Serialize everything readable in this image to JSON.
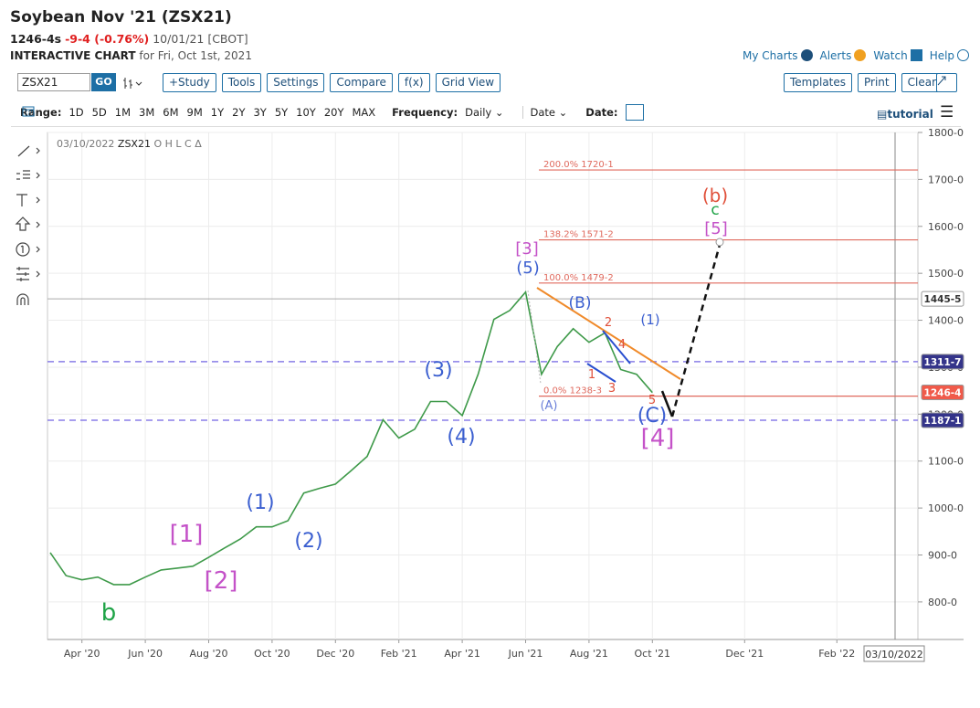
{
  "header": {
    "title": "Soybean Nov '21 (ZSX21)",
    "last": "1246-4s",
    "change": "-9-4 (-0.76%)",
    "date_exchange": "10/01/21 [CBOT]",
    "chart_label": "INTERACTIVE CHART",
    "chart_for": "for Fri, Oct 1st, 2021",
    "links": [
      "My Charts",
      "Alerts",
      "Watch",
      "Help"
    ]
  },
  "toolbar": {
    "symbol": "ZSX21",
    "go": "GO",
    "buttons_left": [
      "+Study",
      "Tools",
      "Settings",
      "Compare",
      "f(x)",
      "Grid View"
    ],
    "buttons_right": [
      "Templates",
      "Print",
      "Clear"
    ]
  },
  "range_bar": {
    "range_label": "Range:",
    "ranges": [
      "1D",
      "5D",
      "1M",
      "3M",
      "6M",
      "9M",
      "1Y",
      "2Y",
      "3Y",
      "5Y",
      "10Y",
      "20Y",
      "MAX"
    ],
    "frequency_label": "Frequency:",
    "frequency": "Daily",
    "date_mode": "Date",
    "date_label": "Date:",
    "tutorial": "tutorial"
  },
  "chart_data": {
    "type": "line",
    "legend_date": "03/10/2022",
    "legend_symbol": "ZSX21",
    "legend_fields": "O H L C Δ",
    "color": "#3f9a4a",
    "categories": [
      null,
      null,
      "Apr '20",
      null,
      null,
      null,
      "Jun '20",
      null,
      null,
      null,
      "Aug '20",
      null,
      null,
      null,
      "Oct '20",
      null,
      null,
      null,
      "Dec '20",
      null,
      null,
      null,
      "Feb '21",
      null,
      null,
      null,
      "Apr '21",
      null,
      null,
      null,
      "Jun '21",
      null,
      null,
      null,
      "Aug '21",
      null,
      null,
      null,
      "Oct '21",
      null,
      null,
      null,
      "Dec '21",
      null,
      null,
      null,
      "Feb '22",
      null,
      null,
      null
    ],
    "values": [
      905,
      856,
      847,
      853,
      837,
      837,
      853,
      868,
      872,
      876,
      895,
      915,
      934,
      960,
      960,
      973,
      1032,
      1042,
      1051,
      1080,
      1110,
      1188,
      1149,
      1168,
      1227,
      1227,
      1197,
      1285,
      1402,
      1421,
      1460,
      1285,
      1344,
      1382,
      1353,
      1373,
      1295,
      1285,
      1246,
      null,
      null,
      null,
      null,
      null,
      null,
      null,
      null,
      null,
      null,
      null
    ],
    "ylim": [
      720,
      1800
    ],
    "yticks": [
      {
        "value": 800,
        "label": "800-0"
      },
      {
        "value": 900,
        "label": "900-0"
      },
      {
        "value": 1000,
        "label": "1000-0"
      },
      {
        "value": 1100,
        "label": "1100-0"
      },
      {
        "value": 1200,
        "label": "1200-0"
      },
      {
        "value": 1300,
        "label": "1300-0"
      },
      {
        "value": 1400,
        "label": "1400-0"
      },
      {
        "value": 1500,
        "label": "1500-0"
      },
      {
        "value": 1600,
        "label": "1600-0"
      },
      {
        "value": 1700,
        "label": "1700-0"
      },
      {
        "value": 1800,
        "label": "1800-0"
      }
    ],
    "grid": true,
    "fib_levels": [
      {
        "value": 1720.125,
        "label": "200.0% 1720-1"
      },
      {
        "value": 1571.25,
        "label": "138.2% 1571-2"
      },
      {
        "value": 1479.25,
        "label": "100.0% 1479-2"
      },
      {
        "value": 1238.375,
        "label": "0.0% 1238-3"
      }
    ],
    "fib_color": "#e06a5e",
    "dashed_levels": [
      {
        "value": 1311.875,
        "label": "1311-7"
      },
      {
        "value": 1187.125,
        "label": "1187-1"
      }
    ],
    "dashed_color": "#8a7ee8",
    "ref_level": {
      "value": 1445.625,
      "label": "1445-5"
    },
    "last_price": {
      "value": 1246.5,
      "label": "1246-4"
    },
    "cursor_date": "03/10/2022",
    "annotations": [
      {
        "text": "(1)",
        "color": "#3b5fd0"
      },
      {
        "text": "(2)",
        "color": "#3b5fd0"
      },
      {
        "text": "(3)",
        "color": "#3b5fd0"
      },
      {
        "text": "(4)",
        "color": "#3b5fd0"
      },
      {
        "text": "(5)",
        "color": "#3b5fd0"
      },
      {
        "text": "[1]",
        "color": "#c452c8"
      },
      {
        "text": "[2]",
        "color": "#c452c8"
      },
      {
        "text": "[3]",
        "color": "#c452c8"
      },
      {
        "text": "[4]",
        "color": "#c452c8"
      },
      {
        "text": "b",
        "color": "#1fa347"
      },
      {
        "text": "(B)",
        "color": "#3b5fd0"
      },
      {
        "text": "(A)",
        "color": "#6a7fd8"
      },
      {
        "text": "(C)",
        "color": "#3b5fd0"
      },
      {
        "text": "(1)",
        "color": "#3b5fd0"
      },
      {
        "text": "2",
        "color": "#e0503a"
      },
      {
        "text": "4",
        "color": "#e0503a"
      },
      {
        "text": "1",
        "color": "#e0503a"
      },
      {
        "text": "3",
        "color": "#e0503a"
      },
      {
        "text": "5",
        "color": "#e0503a"
      },
      {
        "text": "(b)",
        "color": "#e0503a"
      },
      {
        "text": "c",
        "color": "#1fa347"
      },
      {
        "text": "[5]",
        "color": "#c452c8"
      }
    ]
  }
}
